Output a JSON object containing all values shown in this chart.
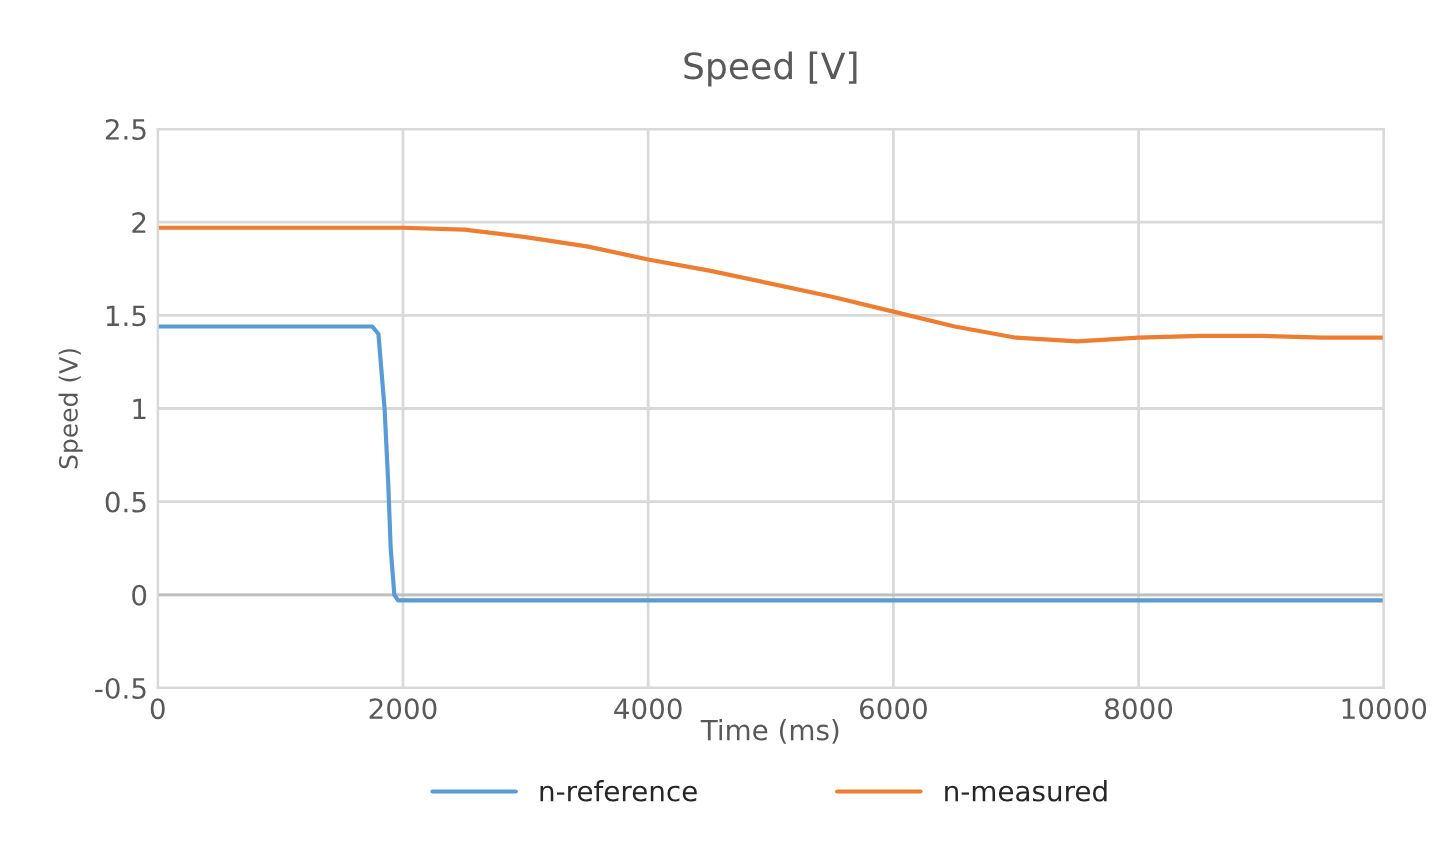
{
  "chart_data": {
    "type": "line",
    "title": "Speed [V]",
    "xlabel": "Time (ms)",
    "ylabel": "Speed (V)",
    "xlim": [
      0,
      10000
    ],
    "xticks": [
      0,
      2000,
      4000,
      6000,
      8000,
      10000
    ],
    "ylim": [
      -0.5,
      2.5
    ],
    "yticks": [
      -0.5,
      0,
      0.5,
      1,
      1.5,
      2,
      2.5
    ],
    "grid": true,
    "legend": "bottom",
    "marker": "none",
    "line_style": "solid",
    "series": [
      {
        "name": "n-reference",
        "color": "#5b9bd5",
        "x": [
          0,
          500,
          1000,
          1500,
          1750,
          1800,
          1850,
          1880,
          1900,
          1930,
          1960,
          2000,
          4000,
          6000,
          8000,
          10000
        ],
        "values": [
          1.44,
          1.44,
          1.44,
          1.44,
          1.44,
          1.4,
          1.0,
          0.6,
          0.25,
          0.0,
          -0.03,
          -0.03,
          -0.03,
          -0.03,
          -0.03,
          -0.03
        ]
      },
      {
        "name": "n-measured",
        "color": "#ed7d31",
        "x": [
          0,
          500,
          1000,
          1500,
          2000,
          2500,
          3000,
          3500,
          4000,
          4500,
          5000,
          5500,
          6000,
          6500,
          7000,
          7500,
          8000,
          8500,
          9000,
          9500,
          10000
        ],
        "values": [
          1.97,
          1.97,
          1.97,
          1.97,
          1.97,
          1.96,
          1.92,
          1.87,
          1.8,
          1.74,
          1.67,
          1.6,
          1.52,
          1.44,
          1.38,
          1.36,
          1.38,
          1.39,
          1.39,
          1.38,
          1.38
        ]
      }
    ]
  }
}
